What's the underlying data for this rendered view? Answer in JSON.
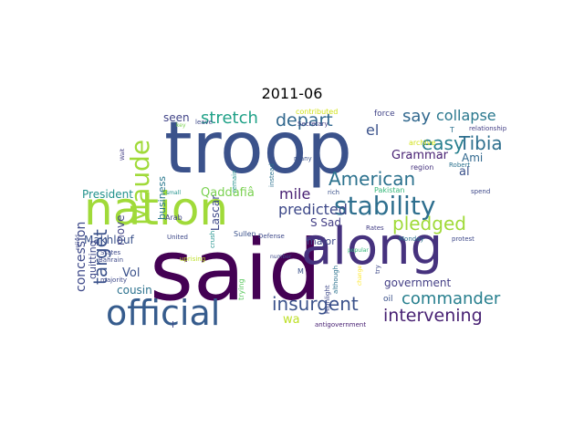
{
  "title": "2011-06",
  "words": [
    {
      "text": "said",
      "color": "#440154"
    },
    {
      "text": "troop",
      "color": "#3b528b"
    },
    {
      "text": "nation",
      "color": "#a0da39"
    },
    {
      "text": "along",
      "color": "#46327e"
    },
    {
      "text": "official",
      "color": "#365c8d"
    },
    {
      "text": "stability",
      "color": "#2e6f8e"
    },
    {
      "text": "Maude",
      "color": "#a0da39"
    },
    {
      "text": "insurgent",
      "color": "#3b528b"
    },
    {
      "text": "commander",
      "color": "#277f8e"
    },
    {
      "text": "intervening",
      "color": "#482173"
    },
    {
      "text": "stretch",
      "color": "#1fa187"
    },
    {
      "text": "American",
      "color": "#2c728e"
    },
    {
      "text": "depart",
      "color": "#31688e"
    },
    {
      "text": "pledged",
      "color": "#a0da39"
    },
    {
      "text": "support",
      "color": "#277f8e"
    },
    {
      "text": "target",
      "color": "#3b528b"
    },
    {
      "text": "easy",
      "color": "#277f8e"
    },
    {
      "text": "Tibia",
      "color": "#2e6f8e"
    },
    {
      "text": "collapse",
      "color": "#2a788e"
    },
    {
      "text": "say",
      "color": "#31688e"
    },
    {
      "text": "mile",
      "color": "#482173"
    },
    {
      "text": "predicted",
      "color": "#3e4989"
    },
    {
      "text": "Qaddafiâ",
      "color": "#7ad151"
    },
    {
      "text": "el",
      "color": "#3b528b"
    },
    {
      "text": "Grammar",
      "color": "#482173"
    },
    {
      "text": "concession",
      "color": "#3e4989"
    },
    {
      "text": "President",
      "color": "#21918c"
    },
    {
      "text": "government",
      "color": "#433e85"
    },
    {
      "text": "Makhlouf",
      "color": "#3b528b"
    },
    {
      "text": "Vol",
      "color": "#3b528b"
    },
    {
      "text": "cousin",
      "color": "#2c728e"
    },
    {
      "text": "quitting",
      "color": "#3e4989"
    },
    {
      "text": "wa",
      "color": "#bddf26"
    },
    {
      "text": "S Sad",
      "color": "#433e85"
    },
    {
      "text": "major",
      "color": "#3e4989"
    },
    {
      "text": "Ami",
      "color": "#31688e"
    },
    {
      "text": "al",
      "color": "#3b528b"
    },
    {
      "text": "move",
      "color": "#414487"
    },
    {
      "text": "business",
      "color": "#2a788e"
    },
    {
      "text": "Lascar",
      "color": "#3e4989"
    },
    {
      "text": "seen",
      "color": "#414487"
    },
    {
      "text": "oil",
      "color": "#3b528b"
    },
    {
      "text": "force",
      "color": "#414487"
    },
    {
      "text": "archive",
      "color": "#d2e21b"
    },
    {
      "text": "region",
      "color": "#46337e"
    },
    {
      "text": "Robert",
      "color": "#2c728e"
    },
    {
      "text": "relationship",
      "color": "#433e85"
    },
    {
      "text": "spend",
      "color": "#3e4989"
    },
    {
      "text": "Pakistan",
      "color": "#35b779"
    },
    {
      "text": "Rates",
      "color": "#433e85"
    },
    {
      "text": "Monday",
      "color": "#2c728e"
    },
    {
      "text": "protest",
      "color": "#3e4989"
    },
    {
      "text": "popular",
      "color": "#35b779"
    },
    {
      "text": "try",
      "color": "#3e4989"
    },
    {
      "text": "Highlight",
      "color": "#3e4989"
    },
    {
      "text": "although",
      "color": "#2c728e"
    },
    {
      "text": "change",
      "color": "#fde725"
    },
    {
      "text": "antigovernment",
      "color": "#482173"
    },
    {
      "text": "number",
      "color": "#3e4989"
    },
    {
      "text": "M",
      "color": "#3b528b"
    },
    {
      "text": "contributed",
      "color": "#d2e21b"
    },
    {
      "text": "leave",
      "color": "#3e4989"
    },
    {
      "text": "Secretary",
      "color": "#433e85"
    },
    {
      "text": "many",
      "color": "#3b528b"
    },
    {
      "text": "rich",
      "color": "#3b528b"
    },
    {
      "text": "Wait",
      "color": "#433e85"
    },
    {
      "text": "key",
      "color": "#7ad151"
    },
    {
      "text": "small",
      "color": "#21918c"
    },
    {
      "text": "remain",
      "color": "#21918c"
    },
    {
      "text": "instead",
      "color": "#2c728e"
    },
    {
      "text": "crush",
      "color": "#21918c"
    },
    {
      "text": "trying",
      "color": "#5ec962"
    },
    {
      "text": "Arab",
      "color": "#414487"
    },
    {
      "text": "United",
      "color": "#3e4989"
    },
    {
      "text": "Sullen",
      "color": "#3b528b"
    },
    {
      "text": "Defense",
      "color": "#3e4989"
    },
    {
      "text": "uprising",
      "color": "#bddf26"
    },
    {
      "text": "States",
      "color": "#3e4989"
    },
    {
      "text": "Bahrain",
      "color": "#3e4989"
    },
    {
      "text": "majority",
      "color": "#3e4989"
    },
    {
      "text": "relied",
      "color": "#3e4989"
    },
    {
      "text": "T",
      "color": "#2c728e"
    },
    {
      "text": "I",
      "color": "#3e4989"
    }
  ]
}
